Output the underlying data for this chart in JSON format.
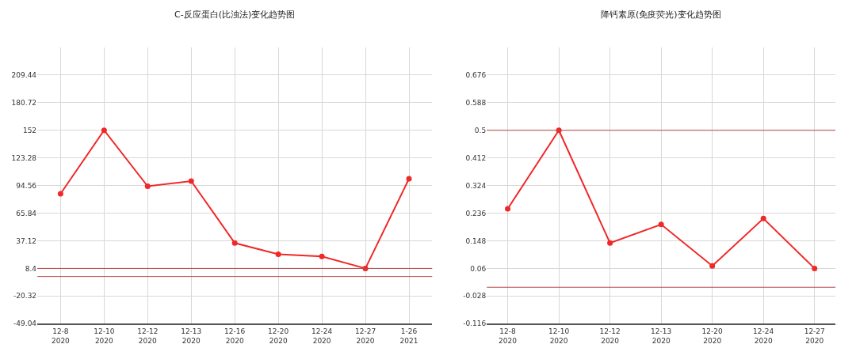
{
  "chart_data": [
    {
      "type": "line",
      "title": "C-反应蛋白(比浊法)变化趋势图",
      "categories": [
        "12-8\n2020",
        "12-10\n2020",
        "12-12\n2020",
        "12-13\n2020",
        "12-16\n2020",
        "12-20\n2020",
        "12-24\n2020",
        "12-27\n2020",
        "1-26\n2021"
      ],
      "series": [
        {
          "color": "#f02828",
          "values": [
            86.0,
            152,
            93.8,
            99.2,
            34.8,
            23.2,
            20.8,
            8.4,
            101.6
          ]
        }
      ],
      "ylim": [
        -49.04,
        238.16
      ],
      "yticks": [
        -49.04,
        -20.32,
        8.4,
        37.12,
        65.84,
        94.56,
        123.28,
        152,
        180.72,
        209.44
      ],
      "grid": true,
      "marker": "circle",
      "line_style": "solid",
      "ref_lines": [
        {
          "axis": "y",
          "value": 8.4,
          "color": "#b84848"
        },
        {
          "axis": "y",
          "value": 0,
          "color": "#b84848"
        }
      ]
    },
    {
      "type": "line",
      "title": "降钙素原(免疫荧光)变化趋势图",
      "categories": [
        "12-8\n2020",
        "12-10\n2020",
        "12-12\n2020",
        "12-13\n2020",
        "12-20\n2020",
        "12-24\n2020",
        "12-27\n2020"
      ],
      "series": [
        {
          "color": "#f02828",
          "values": [
            0.25,
            0.5,
            0.141,
            0.2,
            0.068,
            0.219,
            0.06
          ]
        }
      ],
      "ylim": [
        -0.116,
        0.764
      ],
      "yticks": [
        -0.116,
        -0.028,
        0.06,
        0.148,
        0.236,
        0.324,
        0.412,
        0.5,
        0.588,
        0.676
      ],
      "grid": true,
      "marker": "circle",
      "line_style": "solid",
      "ref_lines": [
        {
          "axis": "y",
          "value": 0.5,
          "color": "#b84848"
        },
        {
          "axis": "y",
          "value": 0,
          "color": "#b84848"
        }
      ]
    }
  ]
}
